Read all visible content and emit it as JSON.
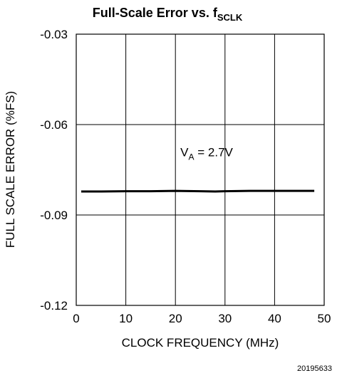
{
  "chart_data": {
    "type": "line",
    "title_main": "Full-Scale Error vs. f",
    "title_sub": "SCLK",
    "xlabel": "CLOCK FREQUENCY (MHz)",
    "ylabel": "FULL SCALE ERROR (%FS)",
    "xlim": [
      0,
      50
    ],
    "ylim": [
      -0.12,
      -0.03
    ],
    "x_ticks": [
      0,
      10,
      20,
      30,
      40,
      50
    ],
    "x_tick_labels": [
      "0",
      "10",
      "20",
      "30",
      "40",
      "50"
    ],
    "y_ticks": [
      -0.03,
      -0.06,
      -0.09,
      -0.12
    ],
    "y_tick_labels": [
      "-0.03",
      "-0.06",
      "-0.09",
      "-0.12"
    ],
    "grid": true,
    "annotation": {
      "text_main": "V",
      "text_sub": "A",
      "text_rest": " = 2.7V",
      "x": 21,
      "y": -0.0705
    },
    "series": [
      {
        "x": [
          1,
          5,
          10,
          15,
          20,
          25,
          28,
          30,
          35,
          40,
          45,
          48
        ],
        "y": [
          -0.0822,
          -0.0822,
          -0.0821,
          -0.0821,
          -0.082,
          -0.0821,
          -0.0822,
          -0.0821,
          -0.082,
          -0.082,
          -0.082,
          -0.082
        ]
      }
    ]
  },
  "footer": {
    "figure_id": "20195633"
  }
}
